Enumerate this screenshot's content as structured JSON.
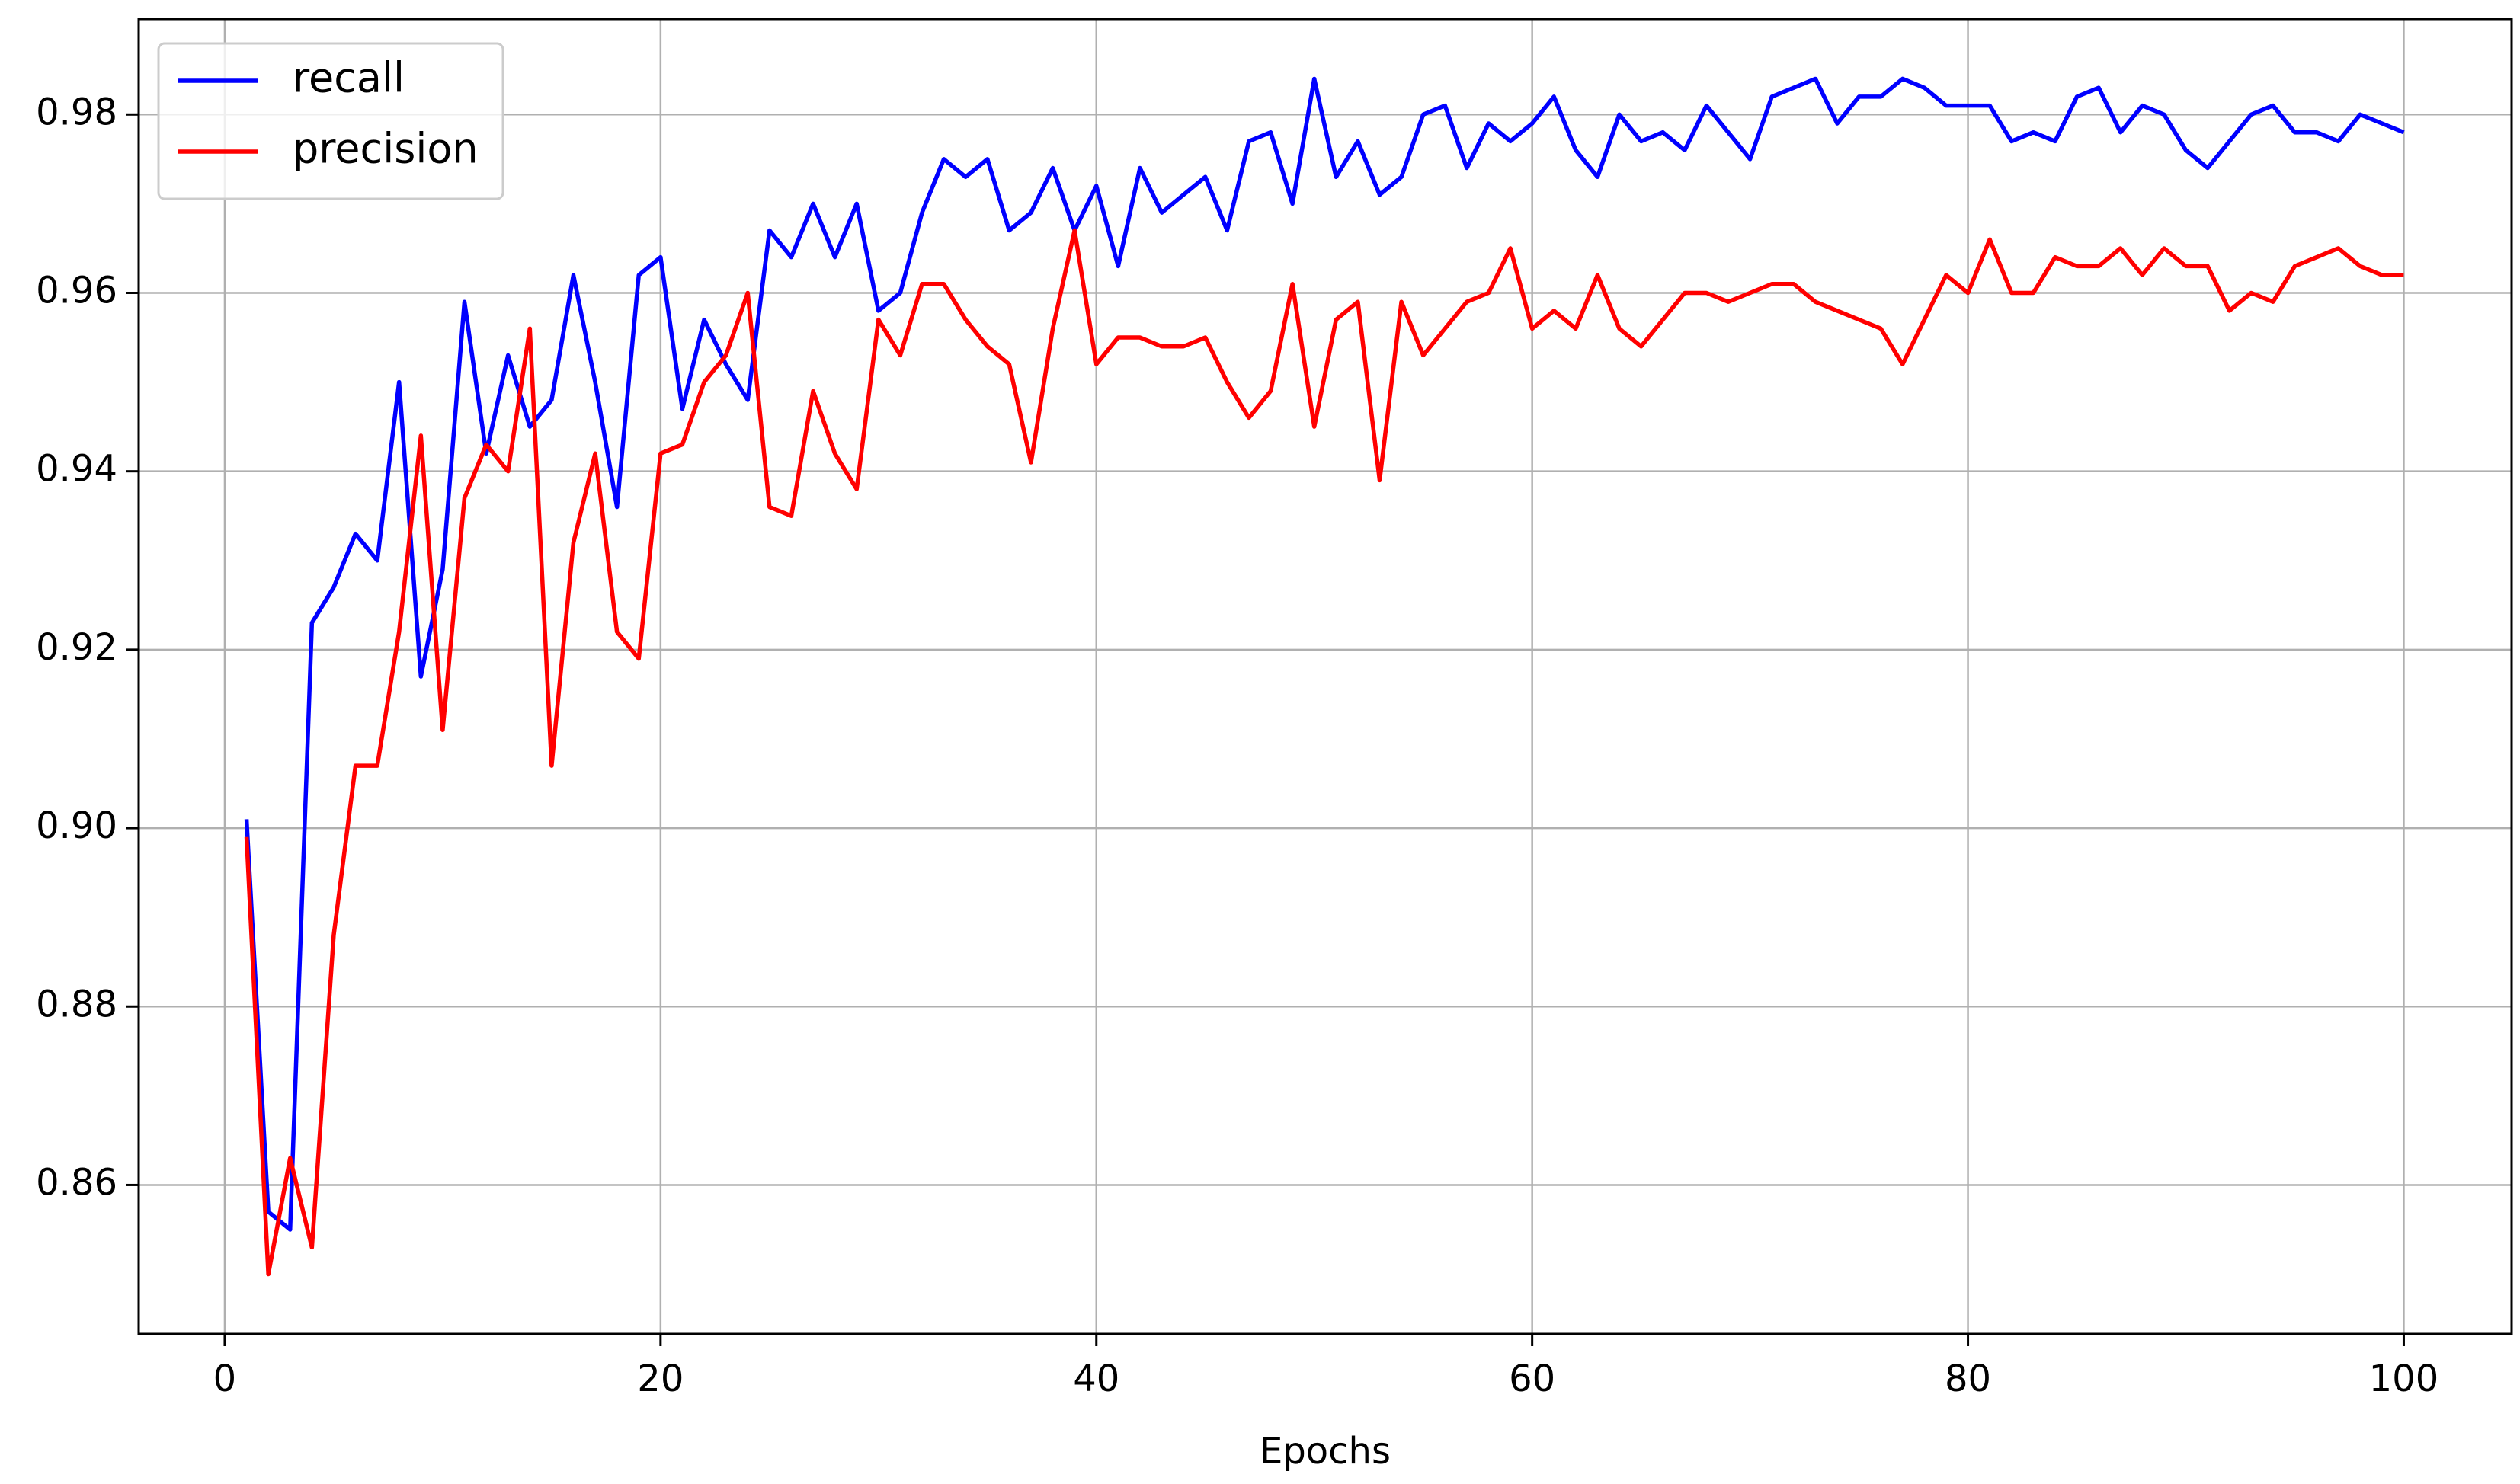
{
  "chart_data": {
    "type": "line",
    "xlabel": "Epochs",
    "x": [
      1,
      2,
      3,
      4,
      5,
      6,
      7,
      8,
      9,
      10,
      11,
      12,
      13,
      14,
      15,
      16,
      17,
      18,
      19,
      20,
      21,
      22,
      23,
      24,
      25,
      26,
      27,
      28,
      29,
      30,
      31,
      32,
      33,
      34,
      35,
      36,
      37,
      38,
      39,
      40,
      41,
      42,
      43,
      44,
      45,
      46,
      47,
      48,
      49,
      50,
      51,
      52,
      53,
      54,
      55,
      56,
      57,
      58,
      59,
      60,
      61,
      62,
      63,
      64,
      65,
      66,
      67,
      68,
      69,
      70,
      71,
      72,
      73,
      74,
      75,
      76,
      77,
      78,
      79,
      80,
      81,
      82,
      83,
      84,
      85,
      86,
      87,
      88,
      89,
      90,
      91,
      92,
      93,
      94,
      95,
      96,
      97,
      98,
      99,
      100
    ],
    "series": [
      {
        "name": "recall",
        "color": "#0000ff",
        "values": [
          0.901,
          0.857,
          0.855,
          0.923,
          0.927,
          0.933,
          0.93,
          0.95,
          0.917,
          0.929,
          0.959,
          0.942,
          0.953,
          0.945,
          0.948,
          0.962,
          0.95,
          0.936,
          0.962,
          0.964,
          0.947,
          0.957,
          0.952,
          0.948,
          0.967,
          0.964,
          0.97,
          0.964,
          0.97,
          0.958,
          0.96,
          0.969,
          0.975,
          0.973,
          0.975,
          0.967,
          0.969,
          0.974,
          0.967,
          0.972,
          0.963,
          0.974,
          0.969,
          0.971,
          0.973,
          0.967,
          0.977,
          0.978,
          0.97,
          0.984,
          0.973,
          0.977,
          0.971,
          0.973,
          0.98,
          0.981,
          0.974,
          0.979,
          0.977,
          0.979,
          0.982,
          0.976,
          0.973,
          0.98,
          0.977,
          0.978,
          0.976,
          0.981,
          0.978,
          0.975,
          0.982,
          0.983,
          0.984,
          0.979,
          0.982,
          0.982,
          0.984,
          0.983,
          0.981,
          0.981,
          0.981,
          0.977,
          0.978,
          0.977,
          0.982,
          0.983,
          0.978,
          0.981,
          0.98,
          0.976,
          0.974,
          0.977,
          0.98,
          0.981,
          0.978,
          0.978,
          0.977,
          0.98,
          0.979,
          0.978
        ]
      },
      {
        "name": "precision",
        "color": "#ff0000",
        "values": [
          0.899,
          0.85,
          0.863,
          0.853,
          0.888,
          0.907,
          0.907,
          0.922,
          0.944,
          0.911,
          0.937,
          0.943,
          0.94,
          0.956,
          0.907,
          0.932,
          0.942,
          0.922,
          0.919,
          0.942,
          0.943,
          0.95,
          0.953,
          0.96,
          0.936,
          0.935,
          0.949,
          0.942,
          0.938,
          0.957,
          0.953,
          0.961,
          0.961,
          0.957,
          0.954,
          0.952,
          0.941,
          0.956,
          0.967,
          0.952,
          0.955,
          0.955,
          0.954,
          0.954,
          0.955,
          0.95,
          0.946,
          0.949,
          0.961,
          0.945,
          0.957,
          0.959,
          0.939,
          0.959,
          0.953,
          0.956,
          0.959,
          0.96,
          0.965,
          0.956,
          0.958,
          0.956,
          0.962,
          0.956,
          0.954,
          0.957,
          0.96,
          0.96,
          0.959,
          0.96,
          0.961,
          0.961,
          0.959,
          0.958,
          0.957,
          0.956,
          0.952,
          0.957,
          0.962,
          0.96,
          0.966,
          0.96,
          0.96,
          0.964,
          0.963,
          0.963,
          0.965,
          0.962,
          0.965,
          0.963,
          0.963,
          0.958,
          0.96,
          0.959,
          0.963,
          0.964,
          0.965,
          0.963,
          0.962,
          0.962
        ]
      }
    ],
    "xlim": [
      -3.95,
      104.95
    ],
    "xticks": [
      0,
      20,
      40,
      60,
      80,
      100
    ],
    "ylim": [
      0.8433,
      0.9907
    ],
    "yticks": [
      0.86,
      0.88,
      {
        "value": 0.9,
        "label": "0.90"
      },
      0.92,
      0.94,
      0.96,
      0.98
    ],
    "grid": true,
    "legend": "upper-left"
  }
}
